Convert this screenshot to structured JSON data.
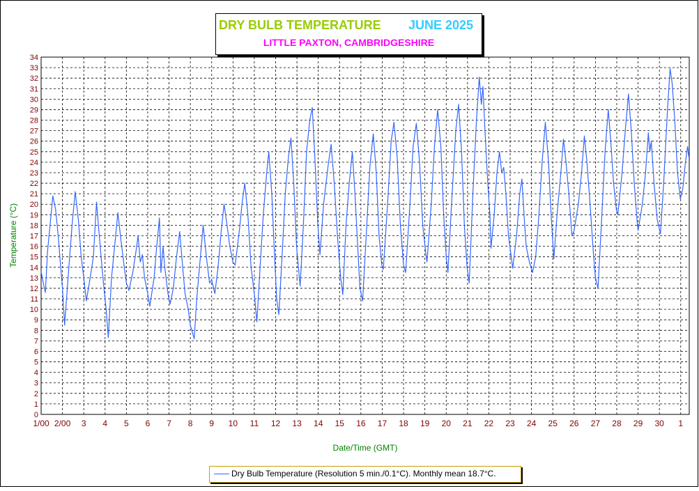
{
  "header": {
    "title": "DRY BULB TEMPERATURE",
    "period": "JUNE 2025",
    "location": "LITTLE PAXTON, CAMBRIDGESHIRE"
  },
  "legend": {
    "label": "Dry Bulb Temperature (Resolution 5 min./0.1°C). Monthly mean 18.7°C."
  },
  "colors": {
    "title": "#99cc00",
    "period": "#33ccff",
    "location": "#ff00ff",
    "series": "#3366ff",
    "axis_title": "#008000",
    "tick_label": "#800000",
    "grid": "#000000"
  },
  "chart_data": {
    "type": "line",
    "title": "DRY BULB TEMPERATURE  JUNE 2025",
    "subtitle": "LITTLE PAXTON, CAMBRIDGESHIRE",
    "xlabel": "Date/Time (GMT)",
    "ylabel": "Temperature (°C)",
    "ylim": [
      0,
      34
    ],
    "xlim": [
      0,
      30.4
    ],
    "grid": true,
    "legend_position": "bottom-center",
    "x_tick_labels": [
      "1/00",
      "2/00",
      "3",
      "4",
      "5",
      "6",
      "7",
      "8",
      "9",
      "10",
      "11",
      "12",
      "13",
      "14",
      "15",
      "16",
      "17",
      "18",
      "19",
      "20",
      "21",
      "22",
      "23",
      "24",
      "25",
      "26",
      "27",
      "28",
      "29",
      "30",
      "1"
    ],
    "y_ticks": [
      0,
      1,
      2,
      3,
      4,
      5,
      6,
      7,
      8,
      9,
      10,
      11,
      12,
      13,
      14,
      15,
      16,
      17,
      18,
      19,
      20,
      21,
      22,
      23,
      24,
      25,
      26,
      27,
      28,
      29,
      30,
      31,
      32,
      33,
      34
    ],
    "series": [
      {
        "name": "Dry Bulb Temperature (Resolution 5 min./0.1°C). Monthly mean 18.7°C.",
        "x_unit": "days since 1 June 00:00 GMT",
        "points": [
          [
            0.0,
            13.6
          ],
          [
            0.1,
            12.5
          ],
          [
            0.2,
            11.6
          ],
          [
            0.3,
            15.5
          ],
          [
            0.42,
            18.0
          ],
          [
            0.55,
            20.8
          ],
          [
            0.68,
            19.5
          ],
          [
            0.8,
            17.0
          ],
          [
            0.9,
            14.5
          ],
          [
            1.0,
            12.0
          ],
          [
            1.1,
            8.5
          ],
          [
            1.3,
            14.0
          ],
          [
            1.45,
            18.0
          ],
          [
            1.6,
            21.2
          ],
          [
            1.75,
            18.5
          ],
          [
            1.88,
            15.0
          ],
          [
            2.0,
            13.0
          ],
          [
            2.12,
            10.8
          ],
          [
            2.3,
            13.0
          ],
          [
            2.45,
            15.0
          ],
          [
            2.6,
            20.2
          ],
          [
            2.75,
            16.5
          ],
          [
            2.9,
            13.0
          ],
          [
            3.05,
            10.0
          ],
          [
            3.15,
            7.3
          ],
          [
            3.3,
            13.0
          ],
          [
            3.45,
            16.0
          ],
          [
            3.6,
            19.2
          ],
          [
            3.75,
            16.5
          ],
          [
            3.9,
            14.0
          ],
          [
            4.0,
            12.5
          ],
          [
            4.12,
            11.8
          ],
          [
            4.3,
            13.5
          ],
          [
            4.45,
            15.5
          ],
          [
            4.55,
            17.0
          ],
          [
            4.65,
            14.5
          ],
          [
            4.75,
            15.2
          ],
          [
            4.85,
            13.0
          ],
          [
            5.0,
            11.5
          ],
          [
            5.1,
            10.3
          ],
          [
            5.3,
            13.0
          ],
          [
            5.4,
            15.5
          ],
          [
            5.55,
            18.7
          ],
          [
            5.62,
            13.5
          ],
          [
            5.72,
            16.0
          ],
          [
            5.8,
            14.0
          ],
          [
            5.95,
            11.5
          ],
          [
            6.05,
            10.5
          ],
          [
            6.2,
            12.0
          ],
          [
            6.35,
            15.0
          ],
          [
            6.5,
            17.4
          ],
          [
            6.62,
            14.5
          ],
          [
            6.75,
            11.5
          ],
          [
            6.9,
            10.0
          ],
          [
            7.0,
            8.5
          ],
          [
            7.18,
            7.2
          ],
          [
            7.3,
            11.0
          ],
          [
            7.45,
            14.5
          ],
          [
            7.6,
            18.0
          ],
          [
            7.75,
            15.0
          ],
          [
            7.9,
            12.5
          ],
          [
            8.0,
            12.8
          ],
          [
            8.15,
            11.5
          ],
          [
            8.3,
            14.0
          ],
          [
            8.45,
            17.5
          ],
          [
            8.58,
            20.0
          ],
          [
            8.72,
            18.0
          ],
          [
            8.85,
            16.0
          ],
          [
            9.0,
            14.5
          ],
          [
            9.1,
            14.2
          ],
          [
            9.3,
            17.5
          ],
          [
            9.42,
            20.0
          ],
          [
            9.55,
            22.0
          ],
          [
            9.7,
            19.0
          ],
          [
            9.85,
            14.0
          ],
          [
            10.0,
            11.5
          ],
          [
            10.12,
            8.8
          ],
          [
            10.3,
            15.0
          ],
          [
            10.42,
            19.0
          ],
          [
            10.58,
            23.0
          ],
          [
            10.68,
            25.0
          ],
          [
            10.82,
            21.0
          ],
          [
            10.95,
            15.0
          ],
          [
            11.05,
            11.0
          ],
          [
            11.15,
            9.5
          ],
          [
            11.3,
            15.0
          ],
          [
            11.45,
            21.0
          ],
          [
            11.6,
            24.5
          ],
          [
            11.72,
            26.3
          ],
          [
            11.85,
            22.0
          ],
          [
            11.98,
            16.0
          ],
          [
            12.15,
            12.2
          ],
          [
            12.3,
            18.0
          ],
          [
            12.45,
            25.0
          ],
          [
            12.6,
            28.0
          ],
          [
            12.72,
            29.2
          ],
          [
            12.85,
            24.0
          ],
          [
            12.98,
            18.0
          ],
          [
            13.08,
            15.2
          ],
          [
            13.25,
            20.0
          ],
          [
            13.45,
            23.5
          ],
          [
            13.6,
            25.7
          ],
          [
            13.75,
            22.0
          ],
          [
            13.9,
            17.0
          ],
          [
            14.05,
            13.0
          ],
          [
            14.15,
            11.4
          ],
          [
            14.3,
            18.0
          ],
          [
            14.45,
            22.0
          ],
          [
            14.6,
            25.0
          ],
          [
            14.72,
            21.0
          ],
          [
            14.85,
            16.0
          ],
          [
            14.95,
            12.0
          ],
          [
            15.08,
            10.8
          ],
          [
            15.25,
            17.0
          ],
          [
            15.42,
            23.5
          ],
          [
            15.58,
            26.7
          ],
          [
            15.72,
            23.0
          ],
          [
            15.85,
            17.0
          ],
          [
            15.98,
            14.2
          ],
          [
            16.05,
            13.8
          ],
          [
            16.25,
            20.0
          ],
          [
            16.42,
            26.0
          ],
          [
            16.55,
            27.8
          ],
          [
            16.7,
            24.5
          ],
          [
            16.85,
            18.0
          ],
          [
            17.0,
            14.2
          ],
          [
            17.1,
            13.5
          ],
          [
            17.3,
            20.0
          ],
          [
            17.45,
            25.5
          ],
          [
            17.6,
            27.7
          ],
          [
            17.75,
            24.0
          ],
          [
            17.9,
            18.0
          ],
          [
            18.05,
            15.2
          ],
          [
            18.1,
            14.5
          ],
          [
            18.3,
            20.0
          ],
          [
            18.45,
            25.5
          ],
          [
            18.6,
            29.0
          ],
          [
            18.75,
            25.5
          ],
          [
            18.88,
            19.0
          ],
          [
            19.0,
            15.0
          ],
          [
            19.08,
            13.5
          ],
          [
            19.25,
            20.0
          ],
          [
            19.45,
            27.0
          ],
          [
            19.58,
            29.5
          ],
          [
            19.72,
            25.0
          ],
          [
            19.85,
            18.0
          ],
          [
            19.98,
            14.0
          ],
          [
            20.08,
            12.5
          ],
          [
            20.25,
            21.0
          ],
          [
            20.42,
            28.0
          ],
          [
            20.55,
            32.1
          ],
          [
            20.65,
            29.5
          ],
          [
            20.72,
            31.2
          ],
          [
            20.82,
            27.0
          ],
          [
            20.95,
            22.0
          ],
          [
            21.05,
            19.0
          ],
          [
            21.1,
            15.8
          ],
          [
            21.25,
            19.0
          ],
          [
            21.38,
            23.0
          ],
          [
            21.5,
            25.0
          ],
          [
            21.6,
            23.0
          ],
          [
            21.7,
            23.5
          ],
          [
            21.8,
            21.0
          ],
          [
            21.92,
            17.0
          ],
          [
            22.05,
            15.0
          ],
          [
            22.12,
            13.9
          ],
          [
            22.3,
            17.0
          ],
          [
            22.45,
            21.0
          ],
          [
            22.55,
            22.4
          ],
          [
            22.65,
            19.0
          ],
          [
            22.75,
            16.0
          ],
          [
            22.9,
            14.5
          ],
          [
            23.05,
            13.5
          ],
          [
            23.2,
            15.0
          ],
          [
            23.35,
            19.0
          ],
          [
            23.5,
            24.0
          ],
          [
            23.65,
            27.8
          ],
          [
            23.8,
            24.0
          ],
          [
            23.92,
            19.0
          ],
          [
            24.05,
            14.8
          ],
          [
            24.2,
            19.0
          ],
          [
            24.38,
            23.0
          ],
          [
            24.5,
            26.2
          ],
          [
            24.62,
            24.0
          ],
          [
            24.75,
            21.0
          ],
          [
            24.9,
            17.0
          ],
          [
            25.0,
            17.5
          ],
          [
            25.2,
            20.0
          ],
          [
            25.35,
            23.0
          ],
          [
            25.48,
            26.5
          ],
          [
            25.6,
            24.0
          ],
          [
            25.75,
            20.0
          ],
          [
            25.9,
            15.5
          ],
          [
            26.0,
            13.0
          ],
          [
            26.12,
            12.0
          ],
          [
            26.3,
            19.0
          ],
          [
            26.45,
            25.0
          ],
          [
            26.6,
            29.0
          ],
          [
            26.72,
            26.0
          ],
          [
            26.85,
            22.0
          ],
          [
            26.98,
            19.5
          ],
          [
            27.05,
            19.0
          ],
          [
            27.25,
            23.0
          ],
          [
            27.4,
            27.0
          ],
          [
            27.55,
            30.5
          ],
          [
            27.68,
            27.0
          ],
          [
            27.82,
            22.0
          ],
          [
            27.95,
            18.5
          ],
          [
            28.0,
            17.5
          ],
          [
            28.2,
            20.0
          ],
          [
            28.35,
            23.0
          ],
          [
            28.48,
            26.8
          ],
          [
            28.55,
            25.0
          ],
          [
            28.62,
            26.0
          ],
          [
            28.75,
            22.0
          ],
          [
            28.9,
            18.5
          ],
          [
            29.05,
            17.2
          ],
          [
            29.2,
            22.0
          ],
          [
            29.38,
            29.0
          ],
          [
            29.5,
            32.9
          ],
          [
            29.6,
            31.5
          ],
          [
            29.72,
            28.0
          ],
          [
            29.85,
            23.0
          ],
          [
            29.98,
            20.5
          ],
          [
            30.1,
            21.5
          ],
          [
            30.22,
            24.0
          ],
          [
            30.32,
            25.5
          ],
          [
            30.38,
            24.5
          ]
        ]
      }
    ]
  }
}
